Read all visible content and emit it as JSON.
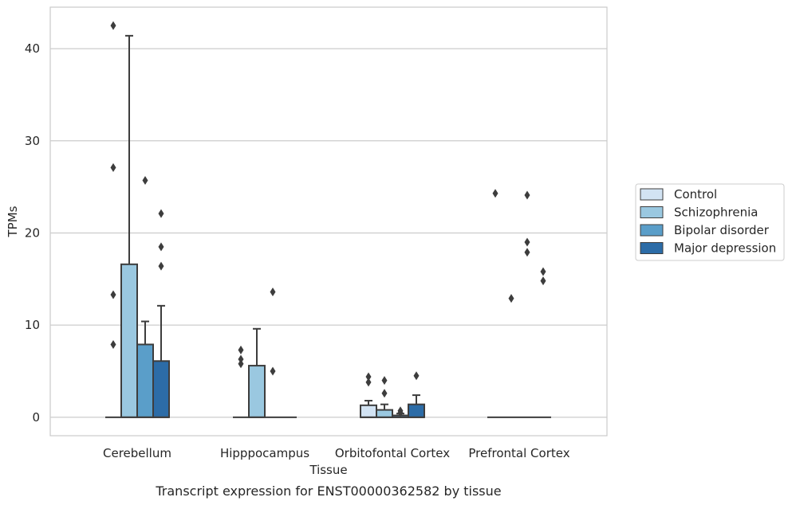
{
  "chart_data": {
    "type": "box",
    "title": "",
    "caption": "Transcript expression for ENST00000362582 by tissue",
    "xlabel": "Tissue",
    "ylabel": "TPMs",
    "ylim": [
      -2.0,
      44.5
    ],
    "yticks": [
      0,
      10,
      20,
      30,
      40
    ],
    "ytick_labels": [
      "0",
      "10",
      "20",
      "30",
      "40"
    ],
    "grid": "horizontal",
    "legend_position": "right",
    "categories": [
      "Cerebellum",
      "Hipppocampus",
      "Orbitofontal Cortex",
      "Prefrontal Cortex"
    ],
    "series": [
      {
        "name": "Control",
        "color": "#d2e3f3",
        "boxes": [
          {
            "q1": 0,
            "median": 0,
            "q3": 0,
            "whisker_low": 0,
            "whisker_high": 0,
            "outliers": [
              7.9,
              13.3,
              27.1,
              42.5
            ]
          },
          {
            "q1": 0,
            "median": 0,
            "q3": 0,
            "whisker_low": 0,
            "whisker_high": 0,
            "outliers": [
              5.8,
              6.3,
              7.3
            ]
          },
          {
            "q1": 0,
            "median": 0,
            "q3": 1.3,
            "whisker_low": 0,
            "whisker_high": 1.8,
            "outliers": [
              3.8,
              4.4
            ]
          },
          {
            "q1": 0,
            "median": 0,
            "q3": 0,
            "whisker_low": 0,
            "whisker_high": 0,
            "outliers": [
              24.3
            ]
          }
        ]
      },
      {
        "name": "Schizophrenia",
        "color": "#9ac8e0",
        "boxes": [
          {
            "q1": 0,
            "median": 0,
            "q3": 16.6,
            "whisker_low": 0,
            "whisker_high": 41.4,
            "outliers": []
          },
          {
            "q1": 0,
            "median": 0,
            "q3": 5.6,
            "whisker_low": 0,
            "whisker_high": 9.6,
            "outliers": []
          },
          {
            "q1": 0,
            "median": 0,
            "q3": 0.8,
            "whisker_low": 0,
            "whisker_high": 1.4,
            "outliers": [
              2.6,
              4.0
            ]
          },
          {
            "q1": 0,
            "median": 0,
            "q3": 0,
            "whisker_low": 0,
            "whisker_high": 0,
            "outliers": [
              12.9
            ]
          }
        ]
      },
      {
        "name": "Bipolar disorder",
        "color": "#5a9ec9",
        "boxes": [
          {
            "q1": 0,
            "median": 0,
            "q3": 7.9,
            "whisker_low": 0,
            "whisker_high": 10.4,
            "outliers": [
              25.7
            ]
          },
          {
            "q1": 0,
            "median": 0,
            "q3": 0,
            "whisker_low": 0,
            "whisker_high": 0,
            "outliers": [
              5.0,
              13.6
            ]
          },
          {
            "q1": 0,
            "median": 0,
            "q3": 0.2,
            "whisker_low": 0,
            "whisker_high": 0.4,
            "outliers": [
              0.5,
              0.7
            ]
          },
          {
            "q1": 0,
            "median": 0,
            "q3": 0,
            "whisker_low": 0,
            "whisker_high": 0,
            "outliers": [
              17.9,
              19.0,
              24.1
            ]
          }
        ]
      },
      {
        "name": "Major depression",
        "color": "#2c6ca7",
        "boxes": [
          {
            "q1": 0,
            "median": 0,
            "q3": 6.1,
            "whisker_low": 0,
            "whisker_high": 12.1,
            "outliers": [
              16.4,
              18.5,
              22.1
            ]
          },
          {
            "q1": 0,
            "median": 0,
            "q3": 0,
            "whisker_low": 0,
            "whisker_high": 0,
            "outliers": []
          },
          {
            "q1": 0,
            "median": 0,
            "q3": 1.4,
            "whisker_low": 0,
            "whisker_high": 2.4,
            "outliers": [
              4.5
            ]
          },
          {
            "q1": 0,
            "median": 0,
            "q3": 0,
            "whisker_low": 0,
            "whisker_high": 0,
            "outliers": [
              14.8,
              15.8
            ]
          }
        ]
      }
    ]
  }
}
